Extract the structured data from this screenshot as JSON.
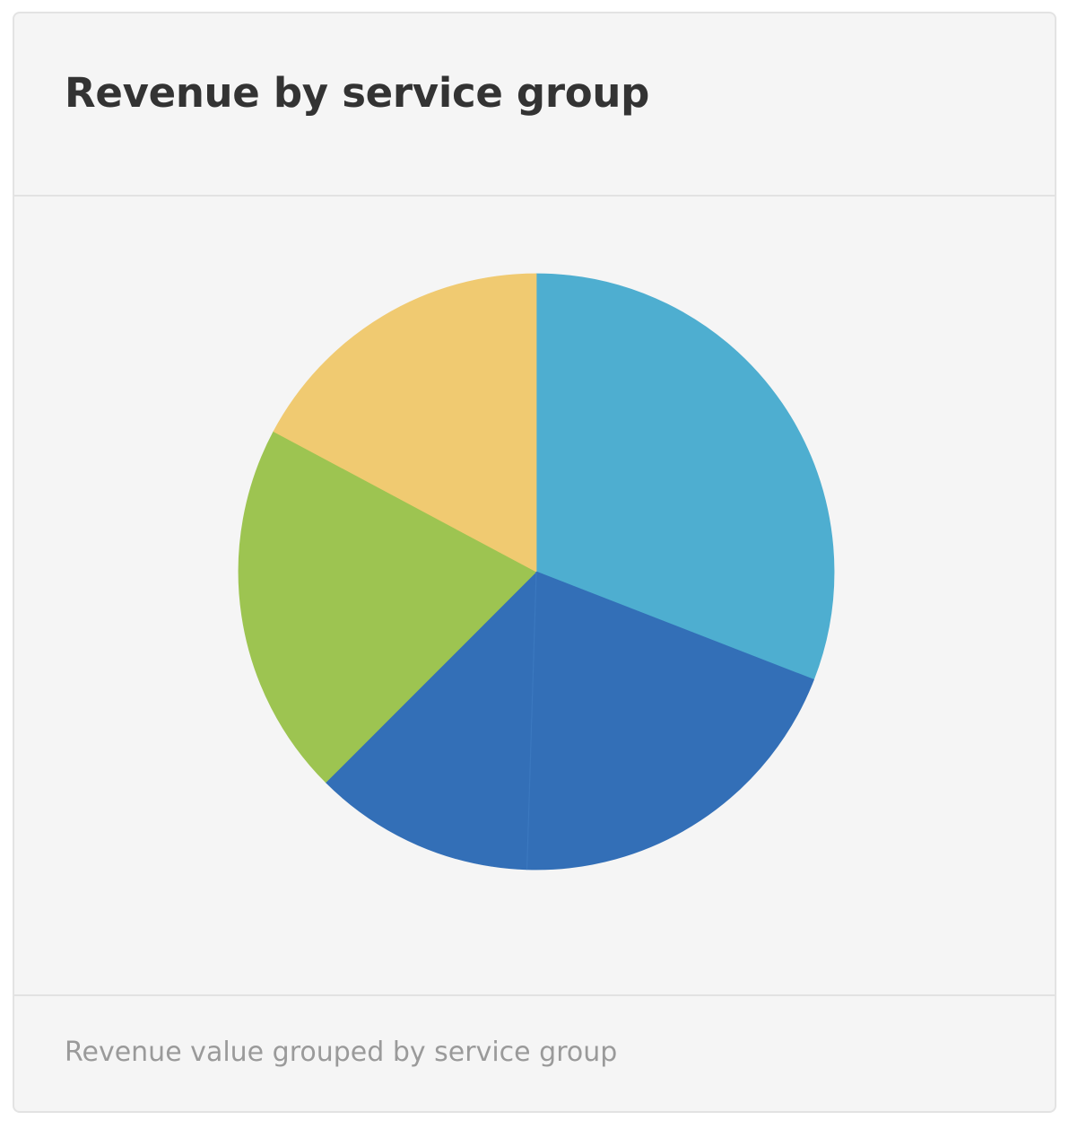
{
  "card": {
    "title": "Revenue by service group",
    "caption": "Revenue value grouped by service group"
  },
  "chart_data": {
    "type": "pie",
    "title": "Revenue by service group",
    "slices": [
      {
        "value": 30.9,
        "color": "#4eaed0"
      },
      {
        "value": 19.6,
        "color": "#336fb7"
      },
      {
        "value": 12.0,
        "color": "#336fb7"
      },
      {
        "value": 20.3,
        "color": "#9dc451"
      },
      {
        "value": 17.2,
        "color": "#f0ca71"
      }
    ],
    "start_angle_deg": 0,
    "direction": "clockwise",
    "legend": "none"
  }
}
